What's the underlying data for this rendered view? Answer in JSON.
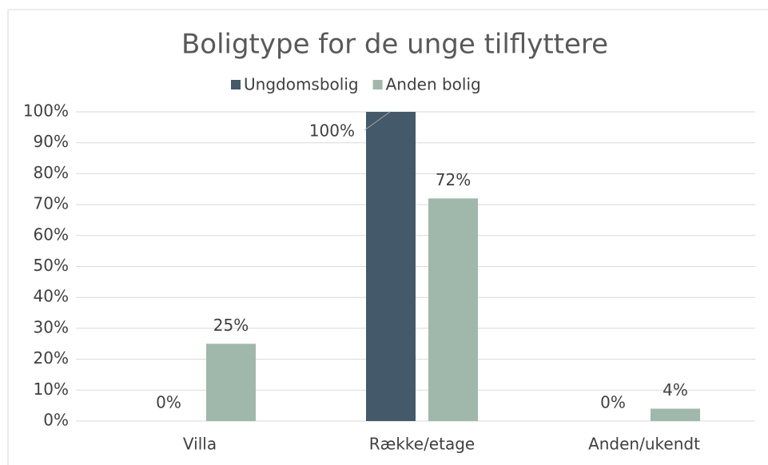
{
  "chart_data": {
    "type": "bar",
    "title": "Boligtype for de unge tilflyttere",
    "categories": [
      "Villa",
      "Række/etage",
      "Anden/ukendt"
    ],
    "series": [
      {
        "name": "Ungdomsbolig",
        "color": "#44596a",
        "values": [
          0,
          100,
          0
        ],
        "value_labels": [
          "0%",
          "100%",
          "0%"
        ]
      },
      {
        "name": "Anden bolig",
        "color": "#9fb8ab",
        "values": [
          25,
          72,
          4
        ],
        "value_labels": [
          "25%",
          "72%",
          "4%"
        ]
      }
    ],
    "ylim": [
      0,
      100
    ],
    "yticks": [
      {
        "value": 0,
        "label": "0%"
      },
      {
        "value": 10,
        "label": "10%"
      },
      {
        "value": 20,
        "label": "20%"
      },
      {
        "value": 30,
        "label": "30%"
      },
      {
        "value": 40,
        "label": "40%"
      },
      {
        "value": 50,
        "label": "50%"
      },
      {
        "value": 60,
        "label": "60%"
      },
      {
        "value": 70,
        "label": "70%"
      },
      {
        "value": 80,
        "label": "80%"
      },
      {
        "value": 90,
        "label": "90%"
      },
      {
        "value": 100,
        "label": "100%"
      }
    ],
    "grid": true,
    "legend": "top"
  }
}
